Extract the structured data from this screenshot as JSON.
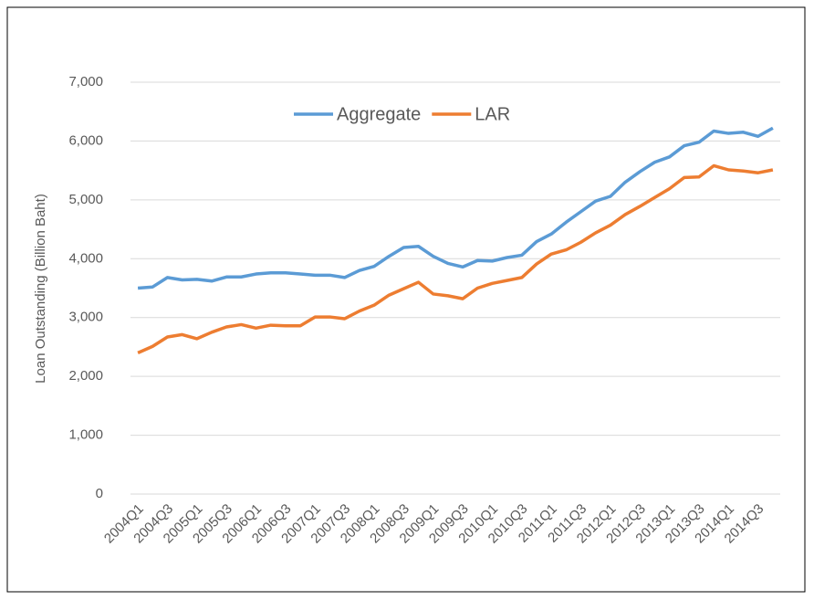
{
  "chart_data": {
    "type": "line",
    "y_label": "Loan Outstanding (Billion Baht)",
    "categories": [
      "2004Q1",
      null,
      "2004Q3",
      null,
      "2005Q1",
      null,
      "2005Q3",
      null,
      "2006Q1",
      null,
      "2006Q3",
      null,
      "2007Q1",
      null,
      "2007Q3",
      null,
      "2008Q1",
      null,
      "2008Q3",
      null,
      "2009Q1",
      null,
      "2009Q3",
      null,
      "2010Q1",
      null,
      "2010Q3",
      null,
      "2011Q1",
      null,
      "2011Q3",
      null,
      "2012Q1",
      null,
      "2012Q3",
      null,
      "2013Q1",
      null,
      "2013Q3",
      null,
      "2014Q1",
      null,
      "2014Q3",
      null
    ],
    "series": [
      {
        "name": "Aggregate",
        "color": "#5b9bd5",
        "values": [
          3500,
          3520,
          3680,
          3640,
          3650,
          3620,
          3690,
          3690,
          3740,
          3760,
          3760,
          3740,
          3720,
          3720,
          3680,
          3800,
          3870,
          4040,
          4190,
          4210,
          4040,
          3920,
          3860,
          3970,
          3960,
          4020,
          4060,
          4290,
          4420,
          4620,
          4800,
          4980,
          5060,
          5300,
          5480,
          5640,
          5730,
          5920,
          5980,
          6170,
          6130,
          6150,
          6080,
          6220
        ]
      },
      {
        "name": "LAR",
        "color": "#ed7d31",
        "values": [
          2400,
          2510,
          2670,
          2710,
          2640,
          2750,
          2840,
          2880,
          2820,
          2870,
          2860,
          2860,
          3010,
          3010,
          2980,
          3110,
          3210,
          3380,
          3490,
          3600,
          3400,
          3370,
          3320,
          3500,
          3580,
          3630,
          3680,
          3910,
          4080,
          4150,
          4280,
          4440,
          4570,
          4750,
          4890,
          5040,
          5190,
          5380,
          5390,
          5580,
          5510,
          5490,
          5460,
          5510
        ]
      }
    ],
    "ylim": [
      0,
      7000
    ],
    "yticks": [
      0,
      {
        "value": 1000,
        "label": "1,000"
      },
      {
        "value": 2000,
        "label": "2,000"
      },
      {
        "value": 3000,
        "label": "3,000"
      },
      {
        "value": 4000,
        "label": "4,000"
      },
      {
        "value": 5000,
        "label": "5,000"
      },
      {
        "value": 6000,
        "label": "6,000"
      },
      {
        "value": 7000,
        "label": "7,000"
      }
    ],
    "grid": true,
    "legend": "top"
  }
}
